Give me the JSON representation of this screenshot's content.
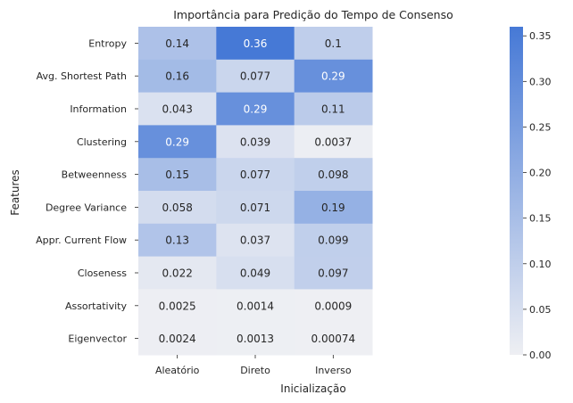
{
  "chart_data": {
    "type": "heatmap",
    "title": "Importância para Predição do Tempo de Consenso",
    "xlabel": "Inicialização",
    "ylabel": "Features",
    "x_categories": [
      "Aleatório",
      "Direto",
      "Inverso"
    ],
    "y_categories": [
      "Entropy",
      "Avg. Shortest Path",
      "Information",
      "Clustering",
      "Betweenness",
      "Degree Variance",
      "Appr. Current Flow",
      "Closeness",
      "Assortativity",
      "Eigenvector"
    ],
    "values": [
      [
        0.14,
        0.36,
        0.1
      ],
      [
        0.16,
        0.077,
        0.29
      ],
      [
        0.043,
        0.29,
        0.11
      ],
      [
        0.29,
        0.039,
        0.0037
      ],
      [
        0.15,
        0.077,
        0.098
      ],
      [
        0.058,
        0.071,
        0.19
      ],
      [
        0.13,
        0.037,
        0.099
      ],
      [
        0.022,
        0.049,
        0.097
      ],
      [
        0.0025,
        0.0014,
        0.0009
      ],
      [
        0.0024,
        0.0013,
        0.00074
      ]
    ],
    "labels": [
      [
        "0.14",
        "0.36",
        "0.1"
      ],
      [
        "0.16",
        "0.077",
        "0.29"
      ],
      [
        "0.043",
        "0.29",
        "0.11"
      ],
      [
        "0.29",
        "0.039",
        "0.0037"
      ],
      [
        "0.15",
        "0.077",
        "0.098"
      ],
      [
        "0.058",
        "0.071",
        "0.19"
      ],
      [
        "0.13",
        "0.037",
        "0.099"
      ],
      [
        "0.022",
        "0.049",
        "0.097"
      ],
      [
        "0.0025",
        "0.0014",
        "0.0009"
      ],
      [
        "0.0024",
        "0.0013",
        "0.00074"
      ]
    ],
    "colorbar": {
      "range": [
        0,
        0.36
      ],
      "ticks": [
        0.0,
        0.05,
        0.1,
        0.15,
        0.2,
        0.25,
        0.3,
        0.35
      ],
      "tick_labels": [
        "0.00",
        "0.05",
        "0.10",
        "0.15",
        "0.20",
        "0.25",
        "0.30",
        "0.35"
      ]
    },
    "colors": {
      "low": "#eeeff3",
      "high": "#4679d6"
    },
    "grid": false
  }
}
